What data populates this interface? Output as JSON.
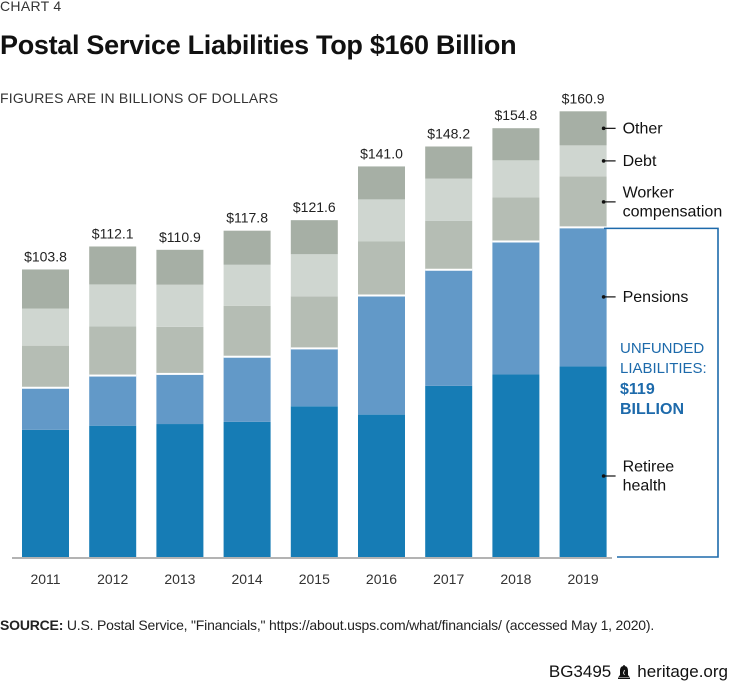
{
  "header": {
    "chart_number": "CHART 4",
    "title": "Postal Service Liabilities Top $160 Billion",
    "subtitle": "FIGURES ARE IN BILLIONS OF DOLLARS"
  },
  "chart_data": {
    "type": "bar",
    "stacked": true,
    "title": "Postal Service Liabilities Top $160 Billion",
    "subtitle": "FIGURES ARE IN BILLIONS OF DOLLARS",
    "xlabel": "",
    "ylabel": "",
    "ylim": [
      0,
      165
    ],
    "grid": false,
    "categories": [
      "2011",
      "2012",
      "2013",
      "2014",
      "2015",
      "2016",
      "2017",
      "2018",
      "2019"
    ],
    "totals": [
      103.8,
      112.1,
      110.9,
      117.8,
      121.6,
      141.0,
      148.2,
      154.8,
      160.9
    ],
    "total_labels": [
      "$103.8",
      "$112.1",
      "$110.9",
      "$117.8",
      "$121.6",
      "$141.0",
      "$148.2",
      "$154.8",
      "$160.9"
    ],
    "series": [
      {
        "name": "Retiree health",
        "color": "#167cb5",
        "values": [
          45.9,
          47.4,
          48.0,
          48.8,
          54.4,
          51.4,
          61.8,
          65.9,
          68.8
        ]
      },
      {
        "name": "Pensions",
        "color": "#6299c8",
        "values": [
          15.2,
          18.1,
          18.1,
          23.5,
          20.9,
          43.0,
          41.9,
          48.0,
          50.2
        ]
      },
      {
        "name": "Worker compensation",
        "color": "#b5bdb4",
        "values": [
          15.2,
          17.7,
          17.0,
          18.4,
          18.8,
          19.5,
          17.7,
          15.9,
          18.4
        ]
      },
      {
        "name": "Debt",
        "color": "#cfd6d0",
        "values": [
          13.4,
          15.2,
          15.2,
          14.8,
          15.2,
          15.2,
          15.2,
          13.4,
          11.2
        ]
      },
      {
        "name": "Other",
        "color": "#a6afa5",
        "values": [
          14.1,
          13.7,
          12.6,
          12.3,
          12.3,
          11.9,
          11.6,
          11.6,
          12.3
        ]
      }
    ],
    "legend": {
      "placement": "right",
      "labels": {
        "other": "Other",
        "debt": "Debt",
        "worker_line1": "Worker",
        "worker_line2": "compensation",
        "pensions": "Pensions",
        "retiree_line1": "Retiree",
        "retiree_line2": "health"
      }
    },
    "annotation": {
      "line1": "UNFUNDED",
      "line2": "LIABILITIES:",
      "line3": "$119",
      "line4": "BILLION",
      "color": "#1d6aab",
      "bracket_color": "#1d6aab",
      "covers_series": [
        "Pensions",
        "Retiree health"
      ]
    }
  },
  "source": {
    "label": "SOURCE:",
    "text": " U.S. Postal Service, \"Financials,\" https://about.usps.com/what/financials/ (accessed May 1, 2020)."
  },
  "footer": {
    "code": "BG3495",
    "site": "heritage.org",
    "logo_icon": "liberty-bell-icon"
  }
}
